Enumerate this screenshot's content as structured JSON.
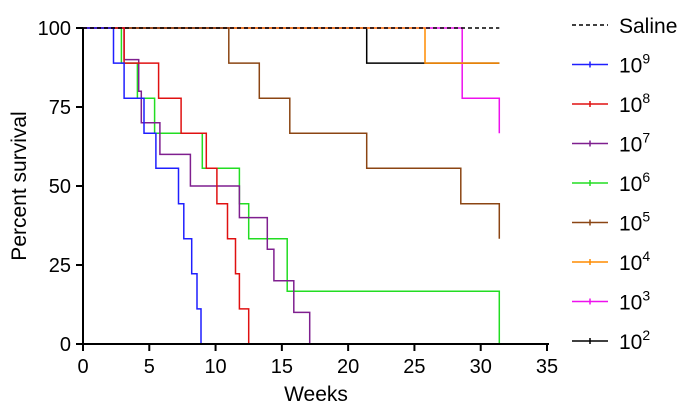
{
  "chart_data": {
    "type": "line",
    "subtype": "kaplan-meier-step",
    "xlabel": "Weeks",
    "ylabel": "Percent survival",
    "xlim": [
      0,
      35
    ],
    "ylim": [
      0,
      100
    ],
    "xticks": [
      "0",
      "5",
      "10",
      "15",
      "20",
      "25",
      "30",
      "35"
    ],
    "yticks": [
      "0",
      "25",
      "50",
      "75",
      "100"
    ],
    "grid": false,
    "legend_position": "right",
    "series": [
      {
        "name": "Saline",
        "base": "Saline",
        "exp": "",
        "color": "#000000",
        "dashed": true,
        "points": [
          [
            0,
            100
          ],
          [
            31.4,
            100
          ]
        ]
      },
      {
        "name": "10^9",
        "base": "10",
        "exp": "9",
        "color": "#1f1fff",
        "dashed": false,
        "points": [
          [
            0,
            100
          ],
          [
            2.3,
            100
          ],
          [
            2.3,
            88.9
          ],
          [
            3.1,
            88.9
          ],
          [
            3.1,
            77.8
          ],
          [
            4.6,
            77.8
          ],
          [
            4.6,
            66.7
          ],
          [
            5.5,
            66.7
          ],
          [
            5.5,
            55.6
          ],
          [
            7.2,
            55.6
          ],
          [
            7.2,
            44.4
          ],
          [
            7.6,
            44.4
          ],
          [
            7.6,
            33.3
          ],
          [
            8.2,
            33.3
          ],
          [
            8.2,
            22.2
          ],
          [
            8.6,
            22.2
          ],
          [
            8.6,
            11.1
          ],
          [
            8.9,
            11.1
          ],
          [
            8.9,
            0
          ]
        ]
      },
      {
        "name": "10^8",
        "base": "10",
        "exp": "8",
        "color": "#e01010",
        "dashed": false,
        "points": [
          [
            0,
            100
          ],
          [
            3.1,
            100
          ],
          [
            3.1,
            88.9
          ],
          [
            5.7,
            88.9
          ],
          [
            5.7,
            77.8
          ],
          [
            7.4,
            77.8
          ],
          [
            7.4,
            66.7
          ],
          [
            9.3,
            66.7
          ],
          [
            9.3,
            55.6
          ],
          [
            10.1,
            55.6
          ],
          [
            10.1,
            44.4
          ],
          [
            10.9,
            44.4
          ],
          [
            10.9,
            33.3
          ],
          [
            11.5,
            33.3
          ],
          [
            11.5,
            22.2
          ],
          [
            11.8,
            22.2
          ],
          [
            11.8,
            11.1
          ],
          [
            12.5,
            11.1
          ],
          [
            12.5,
            0
          ]
        ]
      },
      {
        "name": "10^7",
        "base": "10",
        "exp": "7",
        "color": "#7f1f8f",
        "dashed": false,
        "points": [
          [
            0,
            100
          ],
          [
            3.1,
            100
          ],
          [
            3.1,
            90
          ],
          [
            4.2,
            90
          ],
          [
            4.2,
            80
          ],
          [
            4.4,
            80
          ],
          [
            4.4,
            70
          ],
          [
            5.8,
            70
          ],
          [
            5.8,
            60
          ],
          [
            8.1,
            60
          ],
          [
            8.1,
            50
          ],
          [
            11.8,
            50
          ],
          [
            11.8,
            40
          ],
          [
            13.9,
            40
          ],
          [
            13.9,
            30
          ],
          [
            14.4,
            30
          ],
          [
            14.4,
            20
          ],
          [
            15.9,
            20
          ],
          [
            15.9,
            10
          ],
          [
            17.1,
            10
          ],
          [
            17.1,
            0
          ]
        ]
      },
      {
        "name": "10^6",
        "base": "10",
        "exp": "6",
        "color": "#22dd22",
        "dashed": false,
        "points": [
          [
            0,
            100
          ],
          [
            2.9,
            100
          ],
          [
            2.9,
            88.9
          ],
          [
            4.1,
            88.9
          ],
          [
            4.1,
            77.8
          ],
          [
            5.4,
            77.8
          ],
          [
            5.4,
            66.7
          ],
          [
            9.0,
            66.7
          ],
          [
            9.0,
            55.6
          ],
          [
            11.8,
            55.6
          ],
          [
            11.8,
            44.4
          ],
          [
            12.5,
            44.4
          ],
          [
            12.5,
            33.3
          ],
          [
            15.4,
            33.3
          ],
          [
            15.4,
            16.7
          ],
          [
            31.4,
            16.7
          ],
          [
            31.4,
            0
          ]
        ]
      },
      {
        "name": "10^5",
        "base": "10",
        "exp": "5",
        "color": "#8b4513",
        "dashed": false,
        "points": [
          [
            0,
            100
          ],
          [
            11.0,
            100
          ],
          [
            11.0,
            88.9
          ],
          [
            13.3,
            88.9
          ],
          [
            13.3,
            77.8
          ],
          [
            15.6,
            77.8
          ],
          [
            15.6,
            66.7
          ],
          [
            21.4,
            66.7
          ],
          [
            21.4,
            55.6
          ],
          [
            28.5,
            55.6
          ],
          [
            28.5,
            44.4
          ],
          [
            31.4,
            44.4
          ],
          [
            31.4,
            33.3
          ]
        ]
      },
      {
        "name": "10^4",
        "base": "10",
        "exp": "4",
        "color": "#ff8c00",
        "dashed": false,
        "points": [
          [
            0,
            100
          ],
          [
            25.8,
            100
          ],
          [
            25.8,
            88.9
          ],
          [
            31.4,
            88.9
          ]
        ]
      },
      {
        "name": "10^3",
        "base": "10",
        "exp": "3",
        "color": "#ee10ee",
        "dashed": false,
        "points": [
          [
            0,
            100
          ],
          [
            28.6,
            100
          ],
          [
            28.6,
            77.8
          ],
          [
            31.4,
            77.8
          ],
          [
            31.4,
            66.7
          ]
        ]
      },
      {
        "name": "10^2",
        "base": "10",
        "exp": "2",
        "color": "#000000",
        "dashed": false,
        "points": [
          [
            0,
            100
          ],
          [
            21.4,
            100
          ],
          [
            21.4,
            88.9
          ],
          [
            31.4,
            88.9
          ]
        ]
      }
    ]
  }
}
